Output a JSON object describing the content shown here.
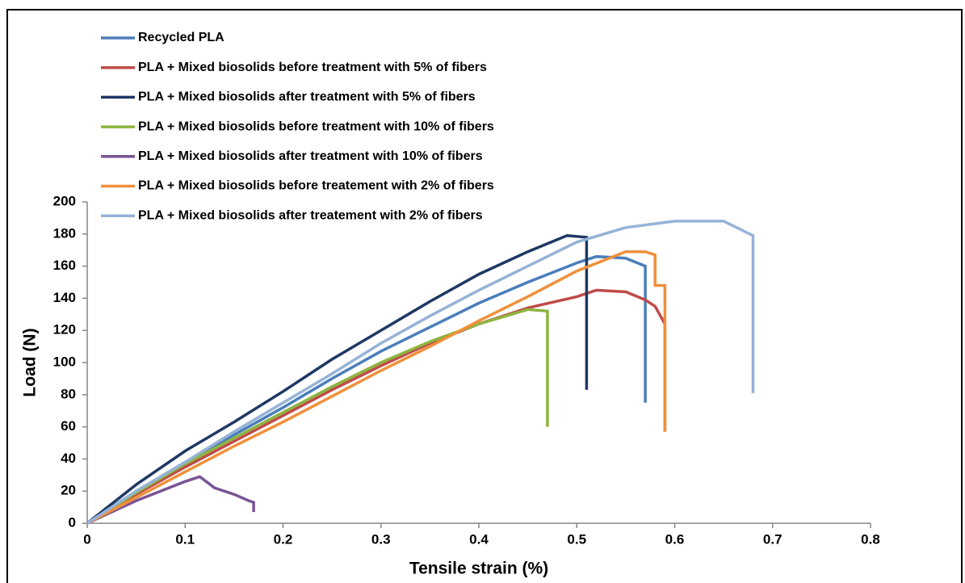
{
  "chart_data": {
    "type": "line",
    "x_label": "Tensile strain (%)",
    "y_label": "Load (N)",
    "xlim": [
      0,
      0.8
    ],
    "ylim": [
      0,
      200
    ],
    "xticks": [
      0,
      0.1,
      0.2,
      0.3,
      0.4,
      0.5,
      0.6,
      0.7,
      0.8
    ],
    "yticks": [
      0,
      20,
      40,
      60,
      80,
      100,
      120,
      140,
      160,
      180,
      200
    ],
    "grid": false,
    "legend": "top-left",
    "series": [
      {
        "name": "Recycled PLA",
        "color": "#4a7ebb",
        "x": [
          0,
          0.05,
          0.1,
          0.15,
          0.2,
          0.25,
          0.3,
          0.35,
          0.4,
          0.45,
          0.5,
          0.52,
          0.55,
          0.57,
          0.57
        ],
        "values": [
          0,
          20,
          38,
          55,
          72,
          90,
          107,
          122,
          137,
          150,
          162,
          166,
          165,
          160,
          75
        ]
      },
      {
        "name": "PLA + Mixed biosolids before treatment with 5% of fibers",
        "color": "#be4b48",
        "x": [
          0,
          0.05,
          0.1,
          0.15,
          0.2,
          0.25,
          0.3,
          0.35,
          0.4,
          0.45,
          0.5,
          0.52,
          0.55,
          0.57,
          0.58,
          0.59,
          0.59
        ],
        "values": [
          0,
          18,
          35,
          51,
          67,
          83,
          98,
          112,
          124,
          134,
          141,
          145,
          144,
          139,
          135,
          124,
          57
        ]
      },
      {
        "name": "PLA + Mixed biosolids after treatment with 5% of fibers",
        "color": "#1f3864",
        "x": [
          0,
          0.05,
          0.1,
          0.15,
          0.2,
          0.25,
          0.3,
          0.35,
          0.4,
          0.45,
          0.49,
          0.51,
          0.51
        ],
        "values": [
          0,
          24,
          45,
          63,
          82,
          102,
          120,
          138,
          155,
          169,
          179,
          178,
          83
        ]
      },
      {
        "name": "PLA + Mixed biosolids before treatment with 10% of fibers",
        "color": "#8db43e",
        "x": [
          0,
          0.05,
          0.1,
          0.15,
          0.2,
          0.25,
          0.3,
          0.35,
          0.4,
          0.45,
          0.47,
          0.47
        ],
        "values": [
          0,
          19,
          37,
          53,
          69,
          85,
          100,
          113,
          124,
          133,
          132,
          60
        ]
      },
      {
        "name": "PLA + Mixed biosolids after treatment with 10% of fibers",
        "color": "#7a5495",
        "x": [
          0,
          0.05,
          0.1,
          0.115,
          0.13,
          0.15,
          0.165,
          0.17,
          0.17
        ],
        "values": [
          0,
          14,
          26,
          29,
          22,
          18,
          14,
          13,
          7
        ]
      },
      {
        "name": "PLA + Mixed biosolids before treatement with 2% of fibers",
        "color": "#f0903a",
        "x": [
          0,
          0.05,
          0.1,
          0.15,
          0.2,
          0.25,
          0.3,
          0.35,
          0.4,
          0.45,
          0.5,
          0.55,
          0.57,
          0.58,
          0.58,
          0.59,
          0.59
        ],
        "values": [
          0,
          16,
          32,
          48,
          63,
          79,
          95,
          110,
          126,
          141,
          157,
          169,
          169,
          167,
          148,
          148,
          57
        ]
      },
      {
        "name": "PLA + Mixed biosolids after treatement with 2% of fibers",
        "color": "#95b3d7",
        "x": [
          0,
          0.05,
          0.1,
          0.15,
          0.2,
          0.25,
          0.3,
          0.35,
          0.4,
          0.45,
          0.5,
          0.55,
          0.6,
          0.65,
          0.67,
          0.68,
          0.68
        ],
        "values": [
          0,
          20,
          38,
          57,
          75,
          93,
          112,
          129,
          145,
          160,
          175,
          184,
          188,
          188,
          182,
          179,
          81
        ]
      }
    ]
  }
}
